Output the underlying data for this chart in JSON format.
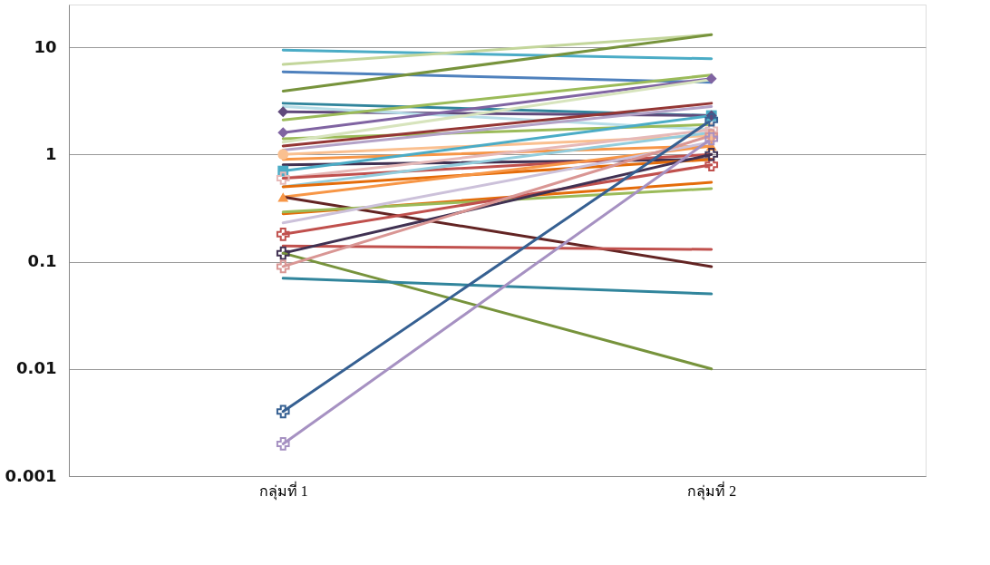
{
  "chart_data": {
    "type": "line",
    "categories": [
      "กลุ่มที่ 1",
      "กลุ่มที่ 2"
    ],
    "log": "y",
    "ylim": [
      0.001,
      25
    ],
    "yticks": [
      0.001,
      0.01,
      0.1,
      1,
      10
    ],
    "grid": "y",
    "line_style": "solid",
    "series": [
      {
        "color": "#4bacc6",
        "values": [
          9.4,
          7.8
        ]
      },
      {
        "color": "#c3d69b",
        "values": [
          6.9,
          13.1
        ]
      },
      {
        "color": "#4f81bd",
        "values": [
          5.9,
          4.7
        ]
      },
      {
        "color": "#77933c",
        "values": [
          3.9,
          13.1
        ]
      },
      {
        "color": "#31859c",
        "values": [
          3.0,
          2.3
        ]
      },
      {
        "color": "#604a7b",
        "values": [
          2.5,
          2.3
        ],
        "marker": "diamond"
      },
      {
        "color": "#b7dee8",
        "values": [
          2.8,
          1.7
        ]
      },
      {
        "color": "#9bbb59",
        "values": [
          2.1,
          5.5
        ]
      },
      {
        "color": "#8064a2",
        "values": [
          1.6,
          5.1
        ],
        "marker": "diamond"
      },
      {
        "color": "#9bbb59",
        "values": [
          1.4,
          1.9
        ]
      },
      {
        "color": "#d7e4bd",
        "values": [
          1.3,
          5.0
        ]
      },
      {
        "color": "#943634",
        "values": [
          1.2,
          3.0
        ]
      },
      {
        "color": "#b3a2c7",
        "values": [
          1.1,
          2.8
        ]
      },
      {
        "color": "#fac090",
        "values": [
          1.0,
          1.5
        ],
        "marker": "circle"
      },
      {
        "color": "#f79646",
        "values": [
          0.9,
          1.2
        ]
      },
      {
        "color": "#403152",
        "values": [
          0.8,
          0.9
        ]
      },
      {
        "color": "#4bacc6",
        "values": [
          0.7,
          2.3
        ],
        "marker": "square"
      },
      {
        "color": "#e6b9b8",
        "values": [
          0.6,
          1.7
        ],
        "marker": "cross"
      },
      {
        "color": "#c0504d",
        "values": [
          0.6,
          1.0
        ]
      },
      {
        "color": "#93cddd",
        "values": [
          0.5,
          1.6
        ]
      },
      {
        "color": "#e46c0a",
        "values": [
          0.5,
          0.9
        ]
      },
      {
        "color": "#f79646",
        "values": [
          0.4,
          1.2
        ],
        "marker": "triangle"
      },
      {
        "color": "#632423",
        "values": [
          0.4,
          0.09
        ]
      },
      {
        "color": "#e46c0a",
        "values": [
          0.28,
          0.55
        ]
      },
      {
        "color": "#9bbb59",
        "values": [
          0.29,
          0.48
        ]
      },
      {
        "color": "#ccc1da",
        "values": [
          0.23,
          1.3
        ]
      },
      {
        "color": "#c0504d",
        "values": [
          0.18,
          0.8
        ],
        "marker": "cross"
      },
      {
        "color": "#c0504d",
        "values": [
          0.14,
          0.13
        ]
      },
      {
        "color": "#403152",
        "values": [
          0.12,
          1.0
        ],
        "marker": "cross"
      },
      {
        "color": "#77933c",
        "values": [
          0.12,
          0.01
        ]
      },
      {
        "color": "#d99694",
        "values": [
          0.09,
          1.5
        ],
        "marker": "cross"
      },
      {
        "color": "#31859c",
        "values": [
          0.07,
          0.05
        ]
      },
      {
        "color": "#366092",
        "values": [
          0.004,
          2.1
        ],
        "marker": "cross"
      },
      {
        "color": "#a691c2",
        "values": [
          0.002,
          1.4
        ],
        "marker": "cross"
      }
    ]
  }
}
